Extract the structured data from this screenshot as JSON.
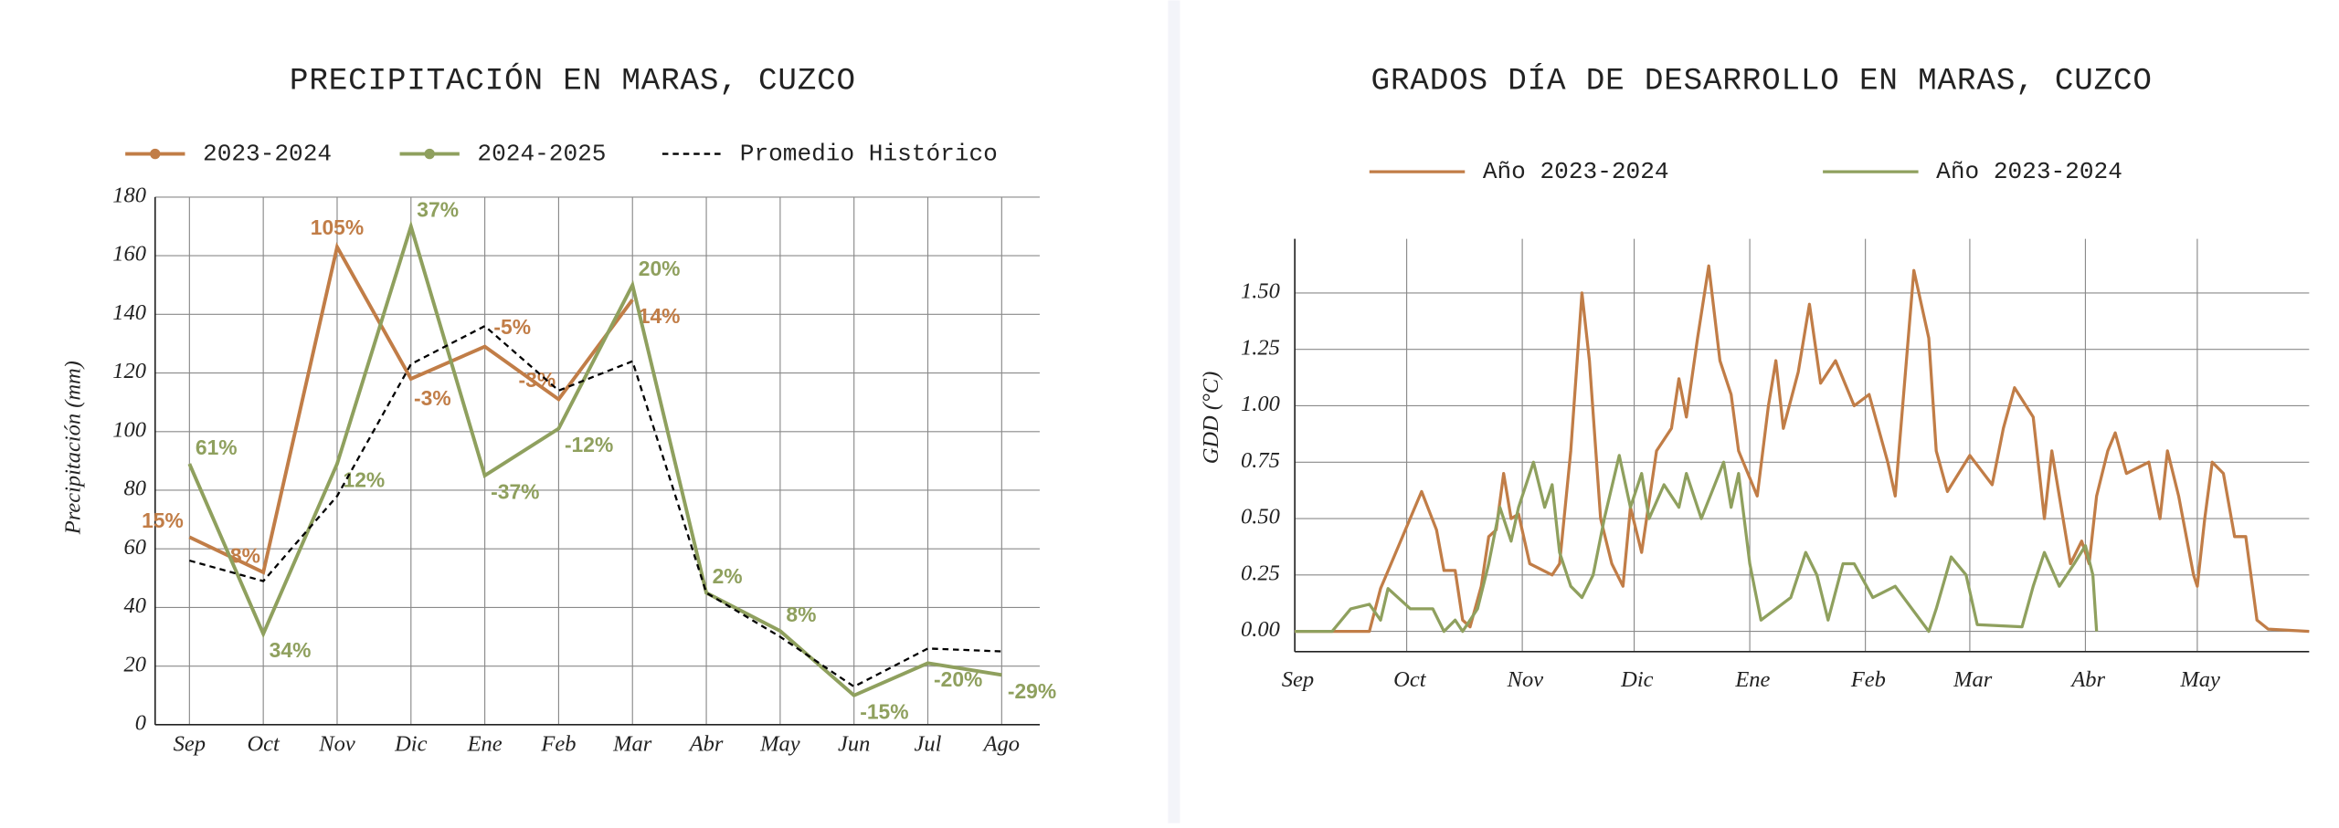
{
  "chart_data": [
    {
      "type": "line",
      "title": "PRECIPITACIÓN EN MARAS, CUZCO",
      "y_label": "Precipitación (mm)",
      "categories": [
        "Sep",
        "Oct",
        "Nov",
        "Dic",
        "Ene",
        "Feb",
        "Mar",
        "Abr",
        "May",
        "Jun",
        "Jul",
        "Ago"
      ],
      "ylim": [
        0,
        180
      ],
      "yticks": [
        0,
        20,
        40,
        60,
        80,
        100,
        120,
        140,
        160,
        180
      ],
      "grid": true,
      "series": [
        {
          "name": "2023-2024",
          "color": "#c17d47",
          "marker": true,
          "linestyle": "solid",
          "values": [
            64,
            52,
            163,
            118,
            129,
            111,
            145,
            null,
            null,
            null,
            null,
            null
          ],
          "value_labels": [
            "15%",
            "8%",
            "105%",
            "-3%",
            "-5%",
            "-3%",
            "14%",
            null,
            null,
            null,
            null,
            null
          ]
        },
        {
          "name": "2024-2025",
          "color": "#8fa05e",
          "marker": true,
          "linestyle": "solid",
          "values": [
            89,
            31,
            89,
            170,
            85,
            101,
            150,
            45,
            32,
            10,
            21,
            17
          ],
          "value_labels": [
            "61%",
            "34%",
            "12%",
            "37%",
            "-37%",
            "-12%",
            "20%",
            "2%",
            "8%",
            "-15%",
            "-20%",
            "-29%"
          ]
        },
        {
          "name": "Promedio Histórico",
          "color": "#000000",
          "marker": false,
          "linestyle": "dashed",
          "values": [
            56,
            49,
            78,
            123,
            136,
            114,
            124,
            45,
            30,
            13,
            26,
            25
          ]
        }
      ]
    },
    {
      "type": "line",
      "title": "GRADOS DÍA DE DESARROLLO EN MARAS, CUZCO",
      "y_label": "GDD (°C)",
      "xlim": [
        0,
        272
      ],
      "xticks": [
        {
          "value": 0,
          "label": "Sep"
        },
        {
          "value": 30,
          "label": "Oct"
        },
        {
          "value": 61,
          "label": "Nov"
        },
        {
          "value": 91,
          "label": "Dic"
        },
        {
          "value": 122,
          "label": "Ene"
        },
        {
          "value": 153,
          "label": "Feb"
        },
        {
          "value": 181,
          "label": "Mar"
        },
        {
          "value": 212,
          "label": "Abr"
        },
        {
          "value": 242,
          "label": "May"
        }
      ],
      "ylim": [
        -0.09,
        1.74
      ],
      "yticks": [
        {
          "value": 0,
          "label": "0.00"
        },
        {
          "value": 0.25,
          "label": "0.25"
        },
        {
          "value": 0.5,
          "label": "0.50"
        },
        {
          "value": 0.75,
          "label": "0.75"
        },
        {
          "value": 1,
          "label": "1.00"
        },
        {
          "value": 1.25,
          "label": "1.25"
        },
        {
          "value": 1.5,
          "label": "1.50"
        }
      ],
      "grid": true,
      "series": [
        {
          "name": "Año 2023-2024",
          "color": "#c17d47",
          "x": [
            0,
            20,
            23,
            34,
            38,
            40,
            43,
            45,
            47,
            50,
            52,
            54,
            56,
            58,
            60,
            63,
            69,
            71,
            74,
            77,
            79,
            82,
            85,
            88,
            90,
            93,
            97,
            101,
            103,
            105,
            108,
            111,
            114,
            117,
            119,
            124,
            127,
            129,
            131,
            135,
            138,
            141,
            145,
            150,
            154,
            159,
            161,
            166,
            170,
            172,
            175,
            178,
            181,
            187,
            190,
            193,
            198,
            201,
            203,
            206,
            208,
            211,
            213,
            215,
            218,
            220,
            223,
            229,
            232,
            234,
            237,
            241,
            242,
            244,
            246,
            249,
            252,
            255,
            258,
            261,
            272
          ],
          "values": [
            0,
            0,
            0.19,
            0.62,
            0.45,
            0.27,
            0.27,
            0.05,
            0.02,
            0.2,
            0.42,
            0.45,
            0.7,
            0.5,
            0.52,
            0.3,
            0.25,
            0.3,
            0.8,
            1.5,
            1.2,
            0.5,
            0.3,
            0.2,
            0.55,
            0.35,
            0.8,
            0.9,
            1.12,
            0.95,
            1.3,
            1.62,
            1.2,
            1.05,
            0.8,
            0.6,
            1.0,
            1.2,
            0.9,
            1.15,
            1.45,
            1.1,
            1.2,
            1.0,
            1.05,
            0.75,
            0.6,
            1.6,
            1.3,
            0.8,
            0.62,
            0.7,
            0.78,
            0.65,
            0.9,
            1.08,
            0.95,
            0.5,
            0.8,
            0.5,
            0.3,
            0.4,
            0.3,
            0.6,
            0.8,
            0.88,
            0.7,
            0.75,
            0.5,
            0.8,
            0.6,
            0.25,
            0.2,
            0.5,
            0.75,
            0.7,
            0.42,
            0.42,
            0.05,
            0.01,
            0
          ]
        },
        {
          "name": "Año 2023-2024",
          "color": "#8fa05e",
          "x": [
            0,
            10,
            15,
            20,
            23,
            25,
            31,
            37,
            40,
            43,
            45,
            49,
            52,
            55,
            58,
            60,
            64,
            67,
            69,
            71,
            74,
            77,
            80,
            83,
            87,
            90,
            93,
            95,
            99,
            103,
            105,
            109,
            115,
            117,
            119,
            122,
            125,
            129,
            133,
            137,
            140,
            143,
            147,
            150,
            155,
            161,
            170,
            172,
            176,
            180,
            183,
            195,
            198,
            201,
            205,
            209,
            212,
            214,
            215
          ],
          "values": [
            0,
            0,
            0.1,
            0.12,
            0.05,
            0.19,
            0.1,
            0.1,
            0.0,
            0.05,
            0.0,
            0.1,
            0.3,
            0.55,
            0.4,
            0.55,
            0.75,
            0.55,
            0.65,
            0.35,
            0.2,
            0.15,
            0.25,
            0.5,
            0.78,
            0.55,
            0.7,
            0.5,
            0.65,
            0.55,
            0.7,
            0.5,
            0.75,
            0.55,
            0.7,
            0.3,
            0.05,
            0.1,
            0.15,
            0.35,
            0.25,
            0.05,
            0.3,
            0.3,
            0.15,
            0.2,
            0.0,
            0.1,
            0.33,
            0.25,
            0.03,
            0.02,
            0.2,
            0.35,
            0.2,
            0.3,
            0.38,
            0.25,
            0.0
          ]
        }
      ]
    }
  ]
}
